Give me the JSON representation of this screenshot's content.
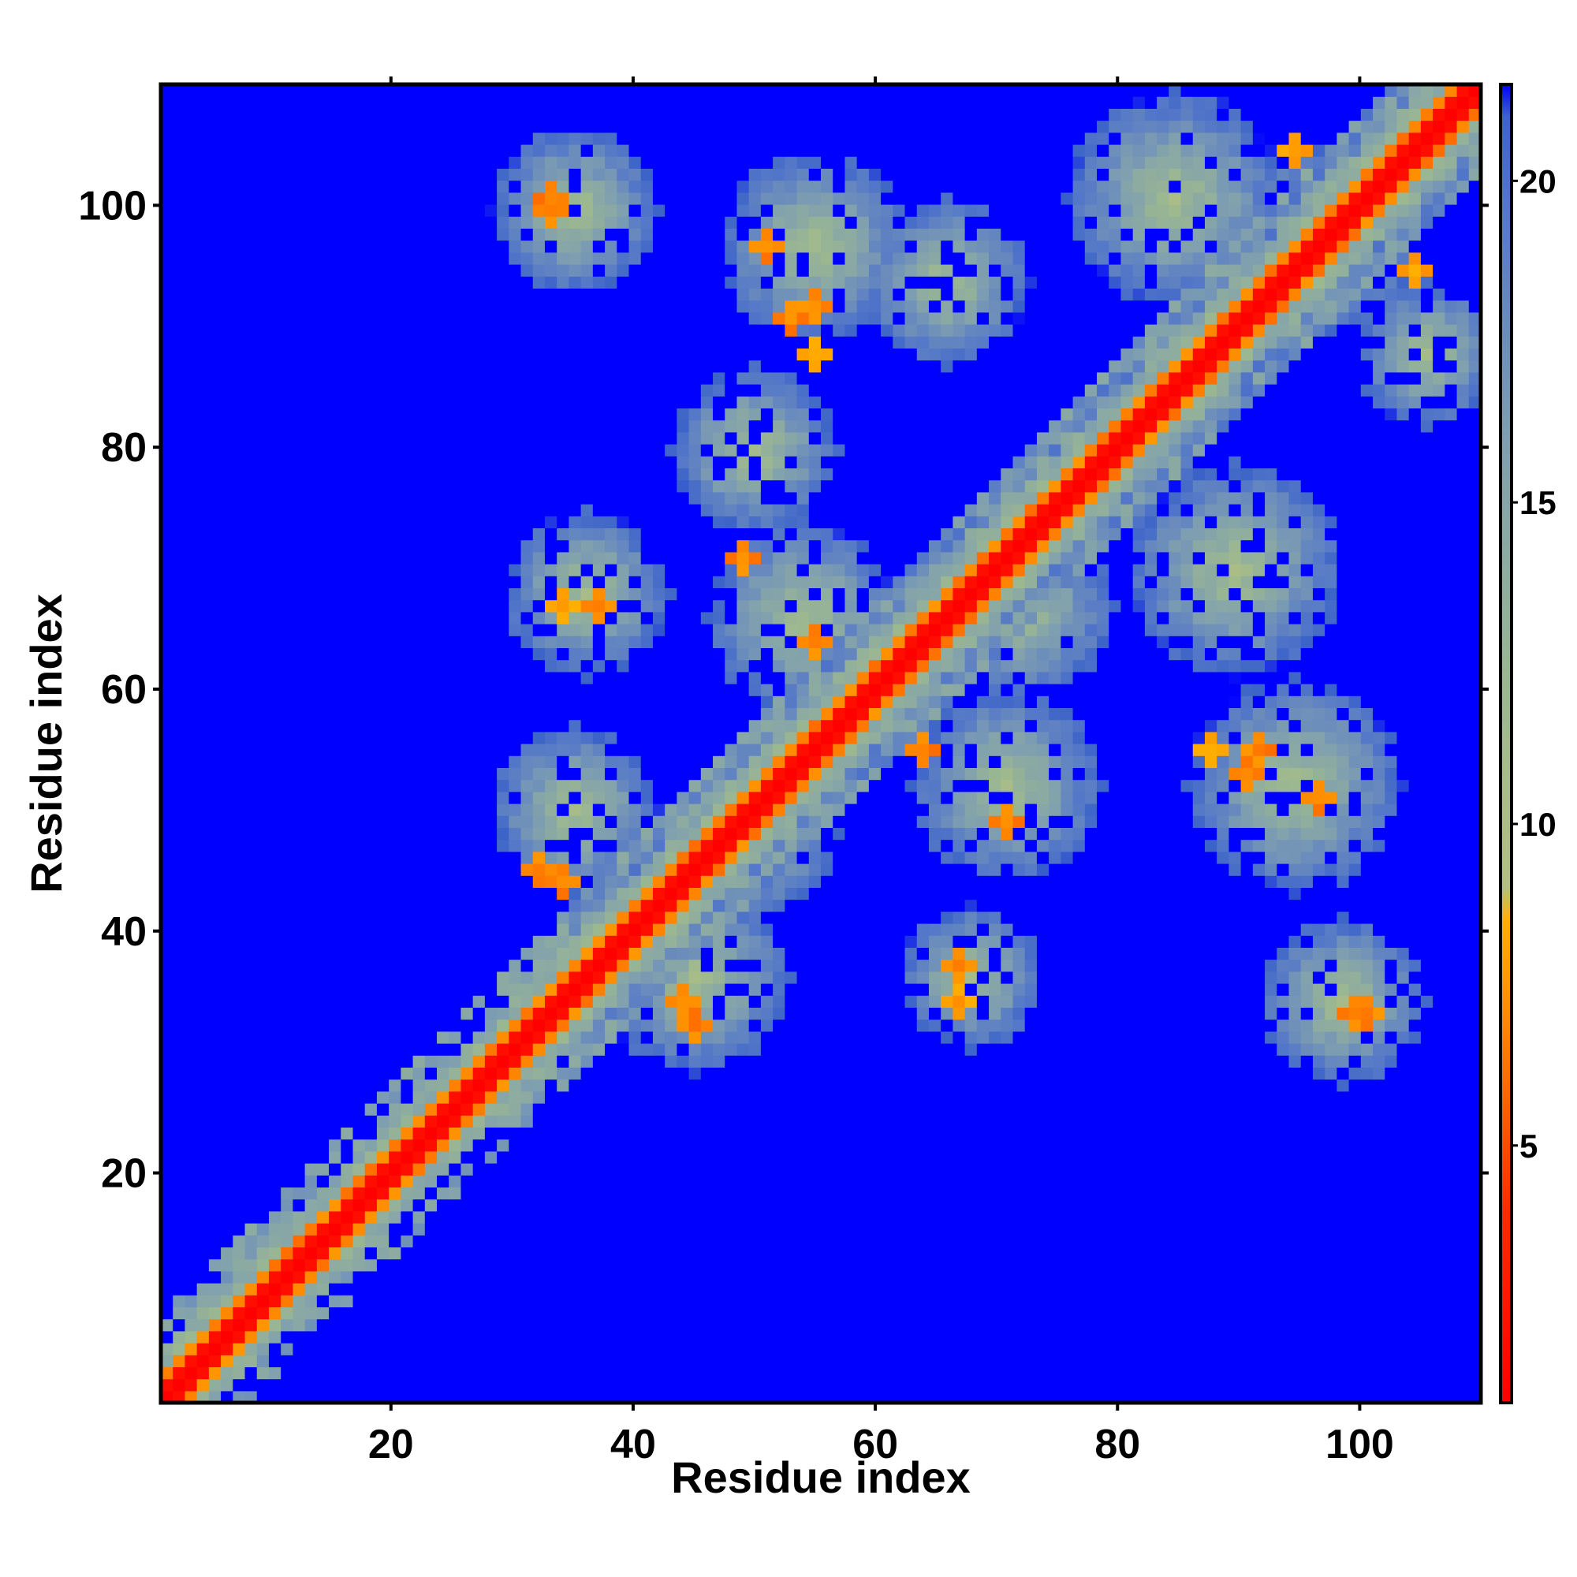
{
  "chart_data": {
    "type": "heatmap",
    "title": "",
    "xlabel": "Residue index",
    "ylabel": "Residue index",
    "xlim": [
      1,
      110
    ],
    "ylim": [
      1,
      110
    ],
    "x_ticks": [
      20,
      40,
      60,
      80,
      100
    ],
    "y_ticks": [
      20,
      40,
      60,
      80,
      100
    ],
    "colorbar": {
      "range": [
        1,
        21.5
      ],
      "ticks": [
        5,
        10,
        15,
        20
      ],
      "colors": [
        {
          "value": 1,
          "color": "#ff0000"
        },
        {
          "value": 4,
          "color": "#ff2a00"
        },
        {
          "value": 7,
          "color": "#ff8c00"
        },
        {
          "value": 8.5,
          "color": "#ffb000"
        },
        {
          "value": 9,
          "color": "#b4c080"
        },
        {
          "value": 12,
          "color": "#9cb890"
        },
        {
          "value": 16,
          "color": "#7f9fb0"
        },
        {
          "value": 19.5,
          "color": "#5578c8"
        },
        {
          "value": 21,
          "color": "#3c64c8"
        },
        {
          "value": 21.5,
          "color": "#0000ff"
        }
      ]
    },
    "background_value": 21.5,
    "background_color": "#0000ff",
    "structure": {
      "n_residues": 110,
      "diagonal_value": 1,
      "close_contacts": [
        {
          "i": 51,
          "j": 97,
          "value": 6
        },
        {
          "i": 53,
          "j": 91,
          "value": 6
        },
        {
          "i": 55,
          "j": 88,
          "value": 7
        },
        {
          "i": 33,
          "j": 101,
          "value": 6
        },
        {
          "i": 34,
          "j": 67,
          "value": 7
        },
        {
          "i": 44,
          "j": 34,
          "value": 6
        },
        {
          "i": 32,
          "j": 45,
          "value": 6
        },
        {
          "i": 67,
          "j": 37,
          "value": 6
        },
        {
          "i": 71,
          "j": 49,
          "value": 6
        },
        {
          "i": 64,
          "j": 55,
          "value": 6
        },
        {
          "i": 92,
          "j": 55,
          "value": 6
        },
        {
          "i": 100,
          "j": 33,
          "value": 6
        },
        {
          "i": 95,
          "j": 105,
          "value": 7
        },
        {
          "i": 89,
          "j": 92,
          "value": 7
        }
      ],
      "contact_blobs": [
        {
          "x": 35,
          "y": 100,
          "radius": 7
        },
        {
          "x": 55,
          "y": 97,
          "radius": 8
        },
        {
          "x": 66,
          "y": 94,
          "radius": 7
        },
        {
          "x": 85,
          "y": 101,
          "radius": 9
        },
        {
          "x": 98,
          "y": 98,
          "radius": 8
        },
        {
          "x": 50,
          "y": 80,
          "radius": 7
        },
        {
          "x": 36,
          "y": 68,
          "radius": 7
        },
        {
          "x": 54,
          "y": 66,
          "radius": 8
        },
        {
          "x": 72,
          "y": 67,
          "radius": 8
        },
        {
          "x": 90,
          "y": 70,
          "radius": 9
        },
        {
          "x": 35,
          "y": 50,
          "radius": 7
        },
        {
          "x": 50,
          "y": 48,
          "radius": 7
        },
        {
          "x": 71,
          "y": 52,
          "radius": 8
        },
        {
          "x": 95,
          "y": 52,
          "radius": 9
        },
        {
          "x": 45,
          "y": 36,
          "radius": 8
        },
        {
          "x": 68,
          "y": 36,
          "radius": 6
        },
        {
          "x": 99,
          "y": 34,
          "radius": 7
        },
        {
          "x": 106,
          "y": 88,
          "radius": 6
        }
      ]
    }
  }
}
